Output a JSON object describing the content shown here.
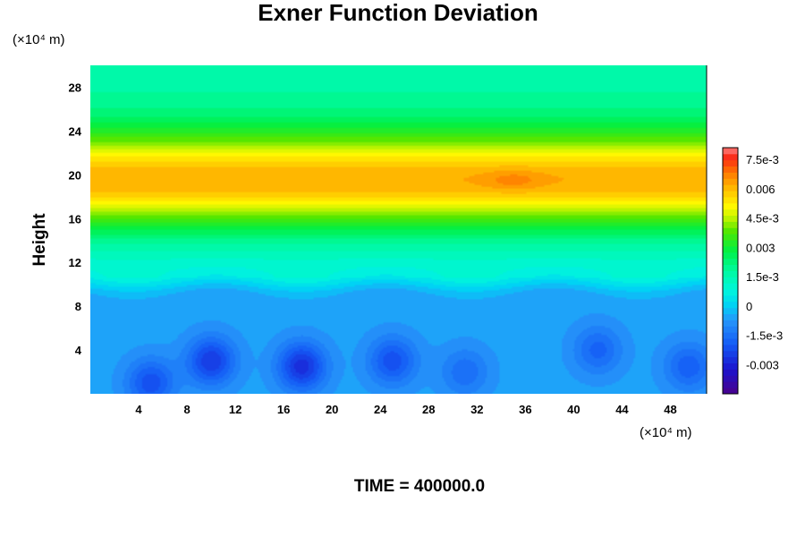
{
  "chart_data": {
    "type": "heatmap",
    "title": "Exner Function Deviation",
    "ylabel": "Height",
    "xlabel": "",
    "y_unit_label": "(×10⁴ m)",
    "x_unit_label": "(×10⁴ m)",
    "xlim": [
      0,
      51
    ],
    "ylim": [
      0,
      30
    ],
    "x_ticks": [
      4,
      8,
      12,
      16,
      20,
      24,
      28,
      32,
      36,
      40,
      44,
      48
    ],
    "y_ticks": [
      4,
      8,
      12,
      16,
      20,
      24,
      28
    ],
    "colorbar": {
      "range": [
        -0.0045,
        0.0081
      ],
      "tick_values": [
        0.0075,
        0.006,
        0.0045,
        0.003,
        0.0015,
        0,
        -0.0015,
        -0.003
      ],
      "tick_labels": [
        "7.5e-3",
        "0.006",
        "4.5e-3",
        "0.003",
        "1.5e-3",
        "0",
        "-1.5e-3",
        "-0.003"
      ]
    },
    "features": {
      "band_max_height": 19.5,
      "band_value": 0.0045,
      "hotspot": {
        "x": 35,
        "y": 19.5,
        "value": 0.0066
      },
      "low_region_top": 9.8,
      "low_region_value": -0.0006,
      "minima": [
        {
          "x": 5,
          "y": 1,
          "value": -0.0022
        },
        {
          "x": 10,
          "y": 3,
          "value": -0.0026
        },
        {
          "x": 17.5,
          "y": 2.5,
          "value": -0.0028
        },
        {
          "x": 25,
          "y": 3,
          "value": -0.0022
        },
        {
          "x": 31,
          "y": 2,
          "value": -0.0016
        },
        {
          "x": 42,
          "y": 4,
          "value": -0.0018
        },
        {
          "x": 49.5,
          "y": 2.5,
          "value": -0.0019
        }
      ]
    }
  },
  "footer": {
    "time_label": "TIME = 400000.0"
  }
}
